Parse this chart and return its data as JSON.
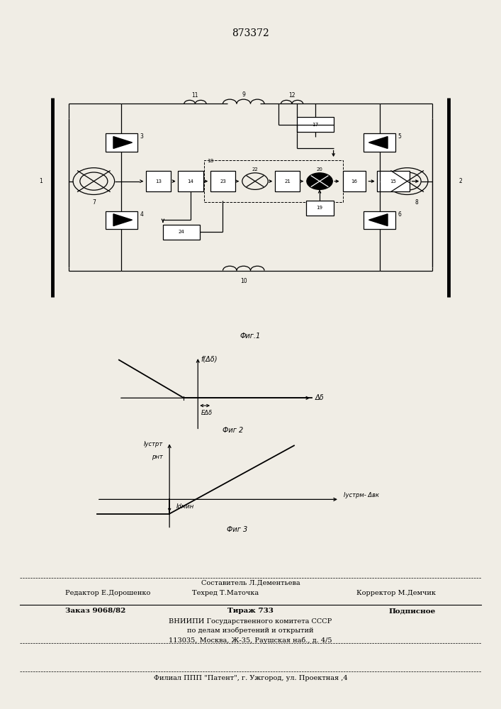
{
  "patent_number": "873372",
  "fig1_caption": "Фиг.1",
  "fig2_caption": "Фиг 2",
  "fig3_caption": "Фиг 3",
  "fig2_ylabel": "f(Δδ)",
  "fig2_xlabel": "Δδ",
  "fig2_deadband_label": "ΕΔδ",
  "fig3_ylabel_line1": "Iустрт",
  "fig3_ylabel_line2": "рнт",
  "fig3_xlabel": "Iустрм- Δвк",
  "fig3_min_label": "Idмин",
  "footer_sestavitel": "Составитель Л.Дементьева",
  "footer_redaktor": "Редактор Е.Дорошенко",
  "footer_tehred": "Техред Т.Маточка",
  "footer_korrektor": "Корректор М.Демчик",
  "footer_zakaz": "Заказ 9068/82",
  "footer_tiraz": "Тираж 733",
  "footer_podpisnoe": "Подписное",
  "footer_vniip1": "ВНИИПИ Государственного комитета СССР",
  "footer_vniip2": "по делам изобретений и открытий",
  "footer_addr": "113035, Москва, Ж-35, Раушская наб., д. 4/5",
  "footer_filial": "Филиал ППП \"Патент\", г. Ужгород, ул. Проектная ,4",
  "bg_color": "#f0ede5"
}
